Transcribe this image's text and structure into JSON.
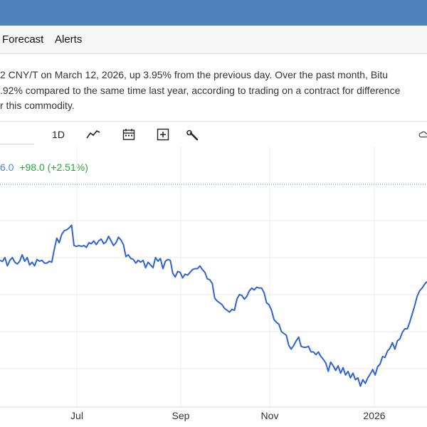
{
  "nav": {
    "items": [
      {
        "label": "Forecast"
      },
      {
        "label": "Alerts"
      }
    ]
  },
  "summary": {
    "lines": [
      "2 CNY/T on March 12, 2026, up 3.95% from the previous day. Over the past month, Bitu",
      ".92% compared to the same time last year, according to trading on a contract for difference",
      "r this commodity."
    ]
  },
  "toolbar": {
    "period_label": "1D",
    "icons": [
      "line-chart-icon",
      "calendar-icon",
      "add-indicator-icon",
      "wrench-icon",
      "cloud-download-icon"
    ]
  },
  "price": {
    "last": "6.0",
    "change": "+98.0 (+2.51%)"
  },
  "colors": {
    "header": "#4f81bd",
    "line": "#2f62d8",
    "positive": "#2aa639",
    "last_price": "#4a86d8"
  },
  "chart_data": {
    "type": "line",
    "x_ticks": [
      "Jul",
      "Sep",
      "Nov",
      "2026"
    ],
    "series": [
      {
        "values": [
          54.0,
          52.7,
          57.0,
          48.0,
          54.0,
          57.0,
          52.0,
          50.0,
          53.0,
          60.0,
          53.0,
          57.0,
          49.0,
          52.0,
          48.0,
          55.0,
          53.0,
          54.0,
          51.0,
          51.0,
          53.0,
          52.0,
          66.0,
          78.0,
          73.0,
          82.0,
          86.0,
          87.0,
          89.0,
          92.0,
          70.0,
          69.0,
          70.0,
          69.0,
          70.0,
          68.0,
          73.0,
          72.0,
          75.0,
          71.0,
          75.0,
          77.0,
          72.0,
          74.0,
          80.0,
          75.0,
          70.0,
          73.0,
          79.0,
          76.0,
          71.0,
          58.0,
          60.0,
          56.0,
          55.0,
          51.0,
          54.0,
          52.0,
          54.0,
          46.0,
          52.0,
          49.0,
          46.0,
          57.0,
          53.0,
          56.0,
          45.0,
          53.0,
          55.0,
          54.0,
          40.0,
          36.0,
          42.0,
          41.0,
          35.0,
          39.0,
          38.0,
          41.0,
          44.0,
          45.0,
          45.0,
          48.0,
          44.0,
          41.0,
          34.0,
          33.0,
          29.0,
          13.0,
          10.0,
          8.0,
          6.0,
          2.0,
          0.0,
          -2.0,
          1.0,
          0.0,
          12.0,
          17.0,
          16.0,
          12.0,
          15.0,
          21.0,
          24.0,
          22.0,
          25.0,
          24.0,
          24.0,
          19.0,
          8.0,
          6.0,
          0.0,
          -10.0,
          -13.0,
          -15.0,
          -23.0,
          -25.0,
          -27.0,
          -38.0,
          -42.0,
          -38.0,
          -33.0,
          -29.0,
          -39.0,
          -40.0,
          -40.0,
          -39.0,
          -45.0,
          -45.0,
          -48.0,
          -45.0,
          -50.0,
          -53.0,
          -57.0,
          -66.0,
          -56.0,
          -60.0,
          -65.0,
          -60.0,
          -68.0,
          -62.0,
          -70.0,
          -66.0,
          -73.0,
          -68.0,
          -75.0,
          -73.0,
          -82.0,
          -75.0,
          -79.0,
          -73.0,
          -69.0,
          -64.0,
          -70.0,
          -61.0,
          -58.0,
          -50.0,
          -51.0,
          -44.0,
          -41.0,
          -35.0,
          -42.0,
          -33.0,
          -31.0,
          -24.0,
          -20.0,
          -20.0,
          -13.0,
          -4.0,
          5.0,
          15.0,
          21.0,
          24.0,
          28.0,
          31.0
        ]
      }
    ],
    "grid": true,
    "reference_line": "dotted horizontal at last price"
  }
}
